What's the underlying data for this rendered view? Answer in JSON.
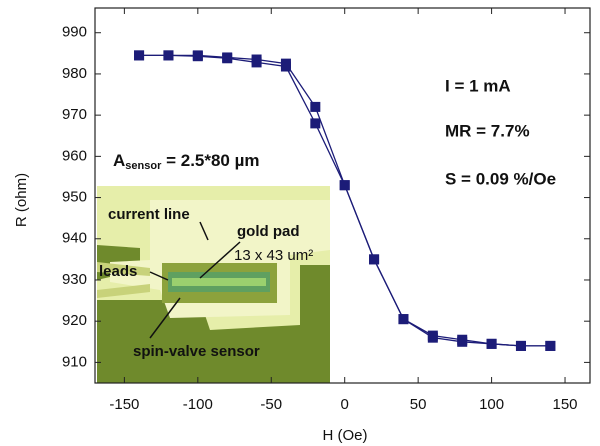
{
  "chart_data": {
    "type": "line",
    "x_label": "H (Oe)",
    "y_label": "R (ohm)",
    "x": [
      -140,
      -120,
      -100,
      -80,
      -60,
      -40,
      -20,
      0,
      20,
      40,
      60,
      80,
      100,
      120,
      140
    ],
    "series": [
      {
        "color": "#1c1c78",
        "values": [
          984.5,
          984.5,
          984.5,
          984,
          983.5,
          982.5,
          972,
          953,
          935,
          920.5,
          916.5,
          915.5,
          914.5,
          914,
          914
        ]
      },
      {
        "color": "#1c1c78",
        "values": [
          984.5,
          984.5,
          984.3,
          983.8,
          982.8,
          981.8,
          968,
          953,
          935,
          920.5,
          916,
          915,
          914.5,
          914,
          914
        ]
      }
    ],
    "xlim": [
      -170,
      167
    ],
    "ylim": [
      905,
      996
    ],
    "xticks": [
      -150,
      -100,
      -50,
      0,
      50,
      100,
      150
    ],
    "yticks": [
      910,
      920,
      930,
      940,
      950,
      960,
      970,
      980,
      990
    ],
    "grid": false,
    "annotations": [
      "I = 1 mA",
      "MR = 7.7%",
      "S = 0.09 %/Oe"
    ],
    "area_label": {
      "main": "A",
      "sub": "sensor",
      "rest": " = 2.5*80 µm"
    },
    "inset_labels": [
      "current line",
      "gold pad",
      "13 x 43 um²",
      "leads",
      "spin-valve sensor"
    ]
  }
}
